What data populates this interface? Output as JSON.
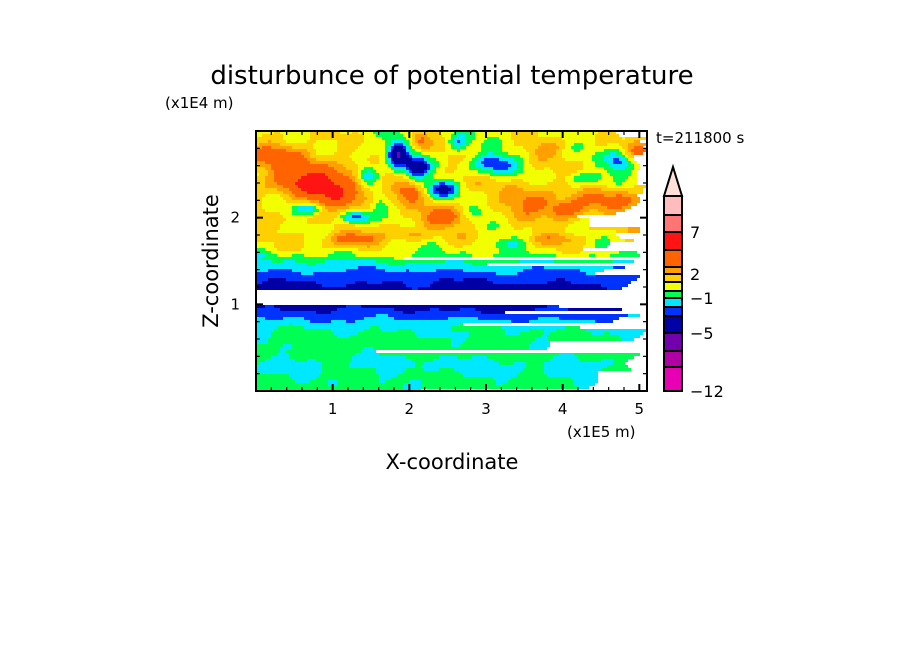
{
  "chart_data": {
    "type": "heatmap",
    "title": "disturbunce of potential temperature",
    "xlabel": "X-coordinate",
    "ylabel": "Z-coordinate",
    "x_unit": "(x1E5 m)",
    "y_unit": "(x1E4 m)",
    "time_label": "t=211800 s",
    "xlim": [
      0,
      5.1
    ],
    "ylim": [
      0,
      3.0
    ],
    "x_ticks": [
      1,
      2,
      3,
      4,
      5
    ],
    "x_tick_labels": [
      "1",
      "2",
      "3",
      "4",
      "5"
    ],
    "y_ticks": [
      1,
      2
    ],
    "y_tick_labels": [
      "1",
      "2"
    ],
    "minor_tick_step": 0.2,
    "contour_levels": [
      -12,
      -10,
      -7,
      -5,
      -3,
      -2,
      -1,
      0,
      1,
      2,
      3,
      5,
      7,
      10,
      14
    ],
    "level_colors": [
      "#e800b4",
      "#b000a4",
      "#7200ac",
      "#0000a4",
      "#0033ff",
      "#00e8ff",
      "#00ff52",
      "#f2ff00",
      "#ffd000",
      "#ffa000",
      "#ff6400",
      "#ff1414",
      "#ff7474",
      "#ffbcbc",
      "#ffe0d8"
    ],
    "colorbar_labels": [
      {
        "value": 7,
        "text": "7"
      },
      {
        "value": 2,
        "text": "2"
      },
      {
        "value": -1,
        "text": "−1"
      },
      {
        "value": -5,
        "text": "−5"
      },
      {
        "value": -12,
        "text": "−12"
      }
    ],
    "background_profile": {
      "z": [
        0,
        0.15,
        0.3,
        0.45,
        0.6,
        0.72,
        0.8,
        0.9,
        1.0,
        1.15,
        1.28,
        1.36,
        1.44,
        1.52,
        1.62,
        1.8,
        2.1,
        2.4,
        2.7,
        3.0
      ],
      "value": [
        -0.6,
        -0.8,
        -1.3,
        -0.6,
        -0.7,
        -1.1,
        -1.7,
        -2.7,
        -3.6,
        -3.6,
        -2.8,
        -2.3,
        -1.5,
        -0.6,
        0.5,
        1.0,
        1.2,
        1.1,
        0.7,
        0.6
      ]
    },
    "features": [
      {
        "x": 0.35,
        "z": 2.7,
        "value": 3.0,
        "rx": 0.45,
        "rz": 0.18
      },
      {
        "x": 0.85,
        "z": 2.42,
        "value": 4.8,
        "rx": 0.55,
        "rz": 0.18
      },
      {
        "x": 1.1,
        "z": 2.2,
        "value": 2.0,
        "rx": 0.4,
        "rz": 0.15
      },
      {
        "x": 0.7,
        "z": 2.1,
        "value": -3.0,
        "rx": 0.22,
        "rz": 0.06
      },
      {
        "x": 1.3,
        "z": 2.0,
        "value": -4.5,
        "rx": 0.2,
        "rz": 0.08
      },
      {
        "x": 1.45,
        "z": 2.5,
        "value": -4.0,
        "rx": 0.16,
        "rz": 0.12
      },
      {
        "x": 1.85,
        "z": 2.72,
        "value": -5.0,
        "rx": 0.13,
        "rz": 0.18
      },
      {
        "x": 2.1,
        "z": 2.58,
        "value": -5.5,
        "rx": 0.15,
        "rz": 0.12
      },
      {
        "x": 2.42,
        "z": 2.33,
        "value": -4.3,
        "rx": 0.2,
        "rz": 0.1
      },
      {
        "x": 2.0,
        "z": 2.3,
        "value": 3.0,
        "rx": 0.15,
        "rz": 0.1
      },
      {
        "x": 2.45,
        "z": 2.0,
        "value": 3.2,
        "rx": 0.3,
        "rz": 0.1
      },
      {
        "x": 1.25,
        "z": 1.75,
        "value": 3.2,
        "rx": 0.35,
        "rz": 0.08
      },
      {
        "x": 2.0,
        "z": 1.8,
        "value": 1.5,
        "rx": 0.2,
        "rz": 0.08
      },
      {
        "x": 2.15,
        "z": 2.9,
        "value": 2.5,
        "rx": 0.12,
        "rz": 0.1
      },
      {
        "x": 2.65,
        "z": 2.85,
        "value": -2.5,
        "rx": 0.12,
        "rz": 0.1
      },
      {
        "x": 3.1,
        "z": 2.62,
        "value": -3.6,
        "rx": 0.28,
        "rz": 0.12
      },
      {
        "x": 3.6,
        "z": 2.2,
        "value": 2.5,
        "rx": 0.3,
        "rz": 0.14
      },
      {
        "x": 4.05,
        "z": 2.1,
        "value": 3.5,
        "rx": 0.25,
        "rz": 0.1
      },
      {
        "x": 4.7,
        "z": 2.2,
        "value": 2.2,
        "rx": 0.45,
        "rz": 0.12
      },
      {
        "x": 4.75,
        "z": 2.65,
        "value": -3.5,
        "rx": 0.18,
        "rz": 0.14
      },
      {
        "x": 3.8,
        "z": 2.8,
        "value": 1.8,
        "rx": 0.25,
        "rz": 0.1
      },
      {
        "x": 5.0,
        "z": 2.75,
        "value": 2.5,
        "rx": 0.25,
        "rz": 0.12
      },
      {
        "x": 0.3,
        "z": 2.05,
        "value": -0.5,
        "rx": 0.3,
        "rz": 0.06
      },
      {
        "x": 3.3,
        "z": 1.7,
        "value": -1.5,
        "rx": 0.3,
        "rz": 0.08
      },
      {
        "x": 2.9,
        "z": 2.05,
        "value": -1.4,
        "rx": 0.25,
        "rz": 0.1
      },
      {
        "x": 4.3,
        "z": 2.45,
        "value": -1.8,
        "rx": 0.25,
        "rz": 0.08
      },
      {
        "x": 1.6,
        "z": 2.2,
        "value": -1.8,
        "rx": 0.12,
        "rz": 0.15
      },
      {
        "x": 3.9,
        "z": 1.75,
        "value": 1.8,
        "rx": 0.35,
        "rz": 0.07
      }
    ]
  }
}
